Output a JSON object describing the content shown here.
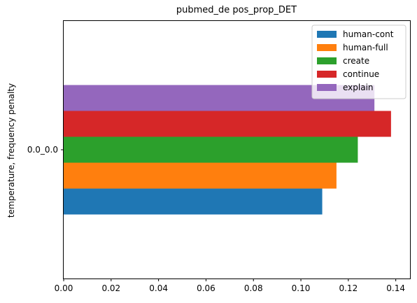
{
  "chart_data": {
    "type": "bar",
    "orientation": "horizontal",
    "title": "pubmed_de pos_prop_DET",
    "xlabel": "",
    "ylabel": "temperature, frequency penalty",
    "categories": [
      "0.0_0.0"
    ],
    "xlim": [
      0,
      0.146
    ],
    "xticks": [
      "0.00",
      "0.02",
      "0.04",
      "0.06",
      "0.08",
      "0.10",
      "0.12",
      "0.14"
    ],
    "xtick_values": [
      0,
      0.02,
      0.04,
      0.06,
      0.08,
      0.1,
      0.12,
      0.14
    ],
    "grid": false,
    "legend_position": "top-right",
    "series": [
      {
        "name": "human-cont",
        "values": [
          0.109
        ],
        "color": "#1f77b4"
      },
      {
        "name": "human-full",
        "values": [
          0.115
        ],
        "color": "#ff7f0e"
      },
      {
        "name": "create",
        "values": [
          0.124
        ],
        "color": "#2ca02c"
      },
      {
        "name": "continue",
        "values": [
          0.138
        ],
        "color": "#d62728"
      },
      {
        "name": "explain",
        "values": [
          0.131
        ],
        "color": "#9467bd"
      }
    ]
  }
}
